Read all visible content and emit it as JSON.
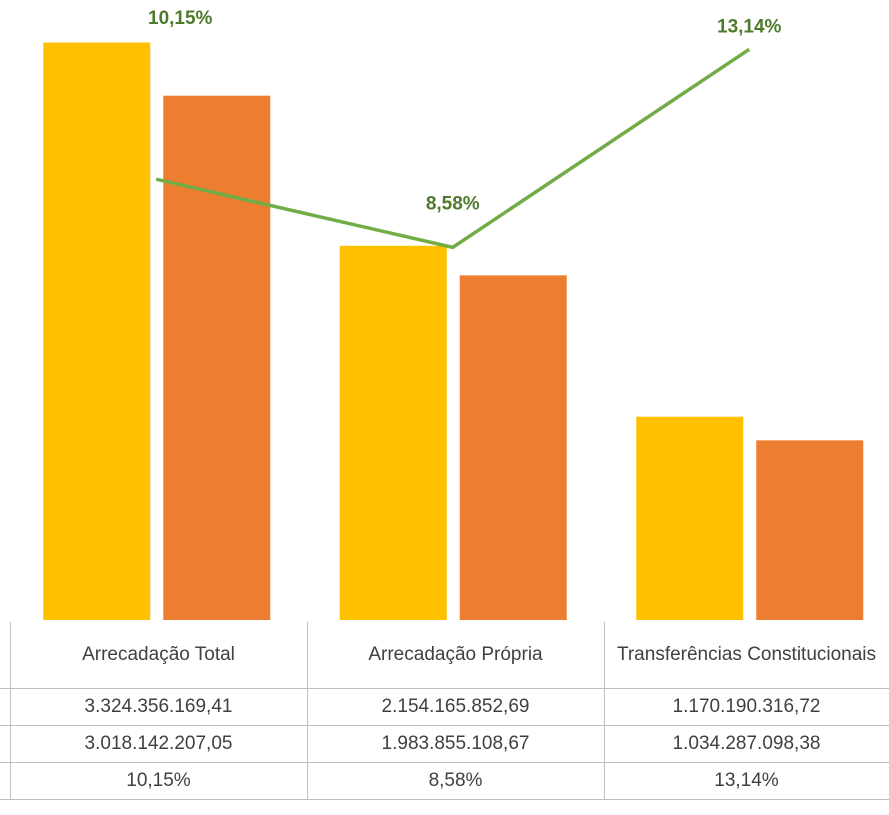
{
  "chart_data": {
    "type": "bar",
    "categories": [
      "Arrecadação Total",
      "Arrecadação Própria",
      "Transferências Constitucionais"
    ],
    "series": [
      {
        "color": "#ffc000",
        "values": [
          3324356169.41,
          2154165852.69,
          1170190316.72
        ],
        "value_labels": [
          "3.324.356.169,41",
          "2.154.165.852,69",
          "1.170.190.316,72"
        ]
      },
      {
        "color": "#ed7d31",
        "values": [
          3018142207.05,
          1983855108.67,
          1034287098.38
        ],
        "value_labels": [
          "3.018.142.207,05",
          "1.983.855.108,67",
          "1.034.287.098,38"
        ]
      },
      {
        "type": "line",
        "axis": "y2",
        "color": "#70ad47",
        "values": [
          10.15,
          8.58,
          13.14
        ],
        "value_labels": [
          "10,15%",
          "8,58%",
          "13,14%"
        ]
      }
    ],
    "ylim": [
      0,
      3500000000
    ],
    "y2lim": [
      0,
      14
    ]
  }
}
